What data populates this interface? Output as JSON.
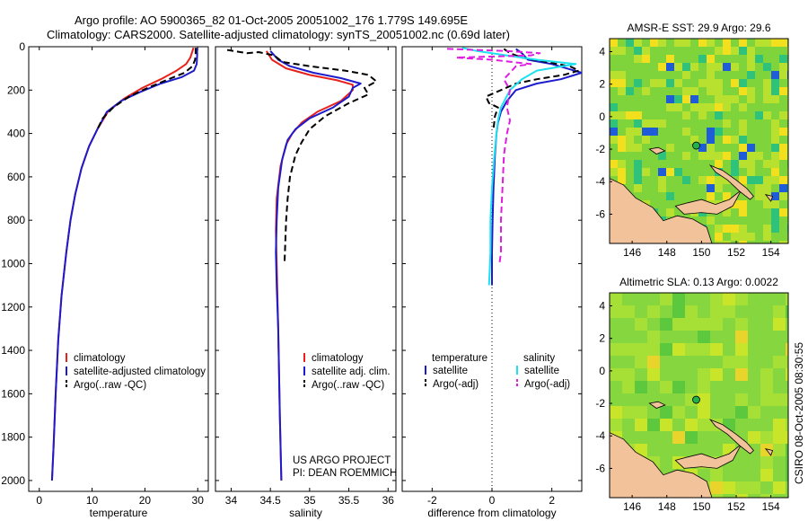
{
  "titles": {
    "line1": "Argo profile: AO 5900365_82 01-Oct-2005 20051002_176 1.779S 149.695E",
    "line2": "Climatology: CARS2000. Satellite-adjusted climatology: synTS_20051002.nc (0.69d later)"
  },
  "footer": {
    "project": "US ARGO PROJECT",
    "pi": "PI: DEAN ROEMMICH",
    "stamp": "CSIRO 08-Oct-2005 08:30:55"
  },
  "colors": {
    "climatology": "#e8211c",
    "satellite": "#1c1ccc",
    "argo": "#000000",
    "salinity_sat": "#1ee1f0",
    "salinity_argo": "#e01ee0"
  },
  "chart_data": [
    {
      "type": "line",
      "id": "temperature",
      "xlabel": "temperature",
      "xlim": [
        -2,
        32
      ],
      "ylim": [
        2050,
        0
      ],
      "xticks": [
        0,
        10,
        20,
        30
      ],
      "xtick_labels": [
        "0",
        "10",
        "20",
        "30"
      ],
      "yticks": [
        0,
        200,
        400,
        600,
        800,
        1000,
        1200,
        1400,
        1600,
        1800,
        2000
      ],
      "ytick_labels": [
        "0",
        "200",
        "400",
        "600",
        "800",
        "1000",
        "1200",
        "1400",
        "1600",
        "1800",
        "2000"
      ],
      "legend": [
        "climatology",
        "satellite-adjusted climatology",
        "Argo(..raw -QC)"
      ],
      "series": [
        {
          "name": "climatology",
          "color": "#e8211c",
          "dash": false,
          "points": [
            [
              29.2,
              5
            ],
            [
              29.0,
              20
            ],
            [
              28.6,
              50
            ],
            [
              27.8,
              80
            ],
            [
              26.0,
              110
            ],
            [
              23.0,
              150
            ],
            [
              19.5,
              190
            ],
            [
              16.0,
              240
            ],
            [
              13.0,
              300
            ],
            [
              11.0,
              380
            ],
            [
              9.4,
              460
            ],
            [
              8.0,
              560
            ],
            [
              6.8,
              680
            ],
            [
              5.9,
              800
            ],
            [
              5.1,
              950
            ],
            [
              4.2,
              1150
            ],
            [
              3.6,
              1350
            ],
            [
              3.1,
              1600
            ],
            [
              2.7,
              1850
            ],
            [
              2.4,
              2000
            ]
          ]
        },
        {
          "name": "satellite-adjusted climatology",
          "color": "#1c1ccc",
          "dash": false,
          "points": [
            [
              29.9,
              5
            ],
            [
              29.9,
              40
            ],
            [
              29.8,
              80
            ],
            [
              29.3,
              110
            ],
            [
              27.0,
              140
            ],
            [
              23.0,
              170
            ],
            [
              19.0,
              210
            ],
            [
              15.5,
              250
            ],
            [
              12.8,
              300
            ],
            [
              11.0,
              380
            ],
            [
              9.4,
              460
            ],
            [
              8.0,
              560
            ],
            [
              6.8,
              680
            ],
            [
              5.9,
              800
            ],
            [
              5.1,
              950
            ],
            [
              4.2,
              1150
            ],
            [
              3.6,
              1350
            ],
            [
              3.1,
              1600
            ],
            [
              2.7,
              1850
            ],
            [
              2.4,
              2000
            ]
          ]
        },
        {
          "name": "Argo(..raw -QC)",
          "color": "#000000",
          "dash": true,
          "points": [
            [
              29.6,
              5
            ],
            [
              29.6,
              30
            ],
            [
              29.5,
              60
            ],
            [
              29.0,
              90
            ],
            [
              27.5,
              120
            ],
            [
              24.0,
              155
            ],
            [
              20.5,
              190
            ],
            [
              17.0,
              230
            ],
            [
              14.0,
              280
            ],
            [
              12.0,
              330
            ],
            [
              11.0,
              380
            ]
          ]
        }
      ]
    },
    {
      "type": "line",
      "id": "salinity",
      "xlabel": "salinity",
      "xlim": [
        33.8,
        36.1
      ],
      "ylim": [
        2050,
        0
      ],
      "xticks": [
        34,
        34.5,
        35,
        35.5,
        36
      ],
      "xtick_labels": [
        "34",
        "34.5",
        "35",
        "35.5",
        "36"
      ],
      "legend": [
        "climatology",
        "satellite adj. clim.",
        "Argo(..raw -QC)"
      ],
      "series": [
        {
          "name": "climatology",
          "color": "#e8211c",
          "dash": false,
          "points": [
            [
              34.45,
              20
            ],
            [
              34.52,
              60
            ],
            [
              34.7,
              100
            ],
            [
              35.0,
              130
            ],
            [
              35.35,
              155
            ],
            [
              35.55,
              175
            ],
            [
              35.55,
              200
            ],
            [
              35.4,
              250
            ],
            [
              35.1,
              300
            ],
            [
              34.9,
              350
            ],
            [
              34.78,
              400
            ],
            [
              34.7,
              450
            ],
            [
              34.63,
              550
            ],
            [
              34.58,
              700
            ],
            [
              34.57,
              850
            ],
            [
              34.58,
              1000
            ],
            [
              34.6,
              1300
            ],
            [
              34.62,
              1700
            ],
            [
              34.64,
              2000
            ]
          ]
        },
        {
          "name": "satellite adj. clim.",
          "color": "#1c1ccc",
          "dash": false,
          "points": [
            [
              34.5,
              20
            ],
            [
              34.6,
              60
            ],
            [
              34.75,
              90
            ],
            [
              35.05,
              120
            ],
            [
              35.4,
              145
            ],
            [
              35.65,
              170
            ],
            [
              35.55,
              190
            ],
            [
              35.5,
              230
            ],
            [
              35.3,
              280
            ],
            [
              35.0,
              330
            ],
            [
              34.82,
              380
            ],
            [
              34.72,
              430
            ],
            [
              34.65,
              520
            ],
            [
              34.6,
              650
            ],
            [
              34.58,
              800
            ],
            [
              34.57,
              950
            ],
            [
              34.58,
              1100
            ],
            [
              34.6,
              1300
            ],
            [
              34.62,
              1700
            ],
            [
              34.64,
              2000
            ]
          ]
        },
        {
          "name": "Argo(..raw -QC)",
          "color": "#000000",
          "dash": true,
          "points": [
            [
              33.95,
              15
            ],
            [
              34.2,
              30
            ],
            [
              34.35,
              25
            ],
            [
              34.55,
              40
            ],
            [
              34.65,
              70
            ],
            [
              35.0,
              90
            ],
            [
              35.45,
              110
            ],
            [
              35.75,
              130
            ],
            [
              35.85,
              160
            ],
            [
              35.7,
              190
            ],
            [
              35.75,
              220
            ],
            [
              35.5,
              260
            ],
            [
              35.2,
              320
            ],
            [
              35.0,
              380
            ],
            [
              34.9,
              440
            ],
            [
              34.82,
              500
            ],
            [
              34.75,
              600
            ],
            [
              34.72,
              700
            ],
            [
              34.7,
              800
            ],
            [
              34.69,
              900
            ],
            [
              34.68,
              1000
            ]
          ]
        }
      ]
    },
    {
      "type": "line",
      "id": "difference",
      "xlabel": "difference from climatology",
      "xlim": [
        -3,
        3
      ],
      "ylim": [
        2050,
        0
      ],
      "xticks": [
        -2,
        0,
        2
      ],
      "xtick_labels": [
        "-2",
        "0",
        "2"
      ],
      "legend_headers": [
        "temperature",
        "salinity"
      ],
      "legend": [
        "satellite",
        "Argo(-adj)",
        "satellite",
        "Argo(-adj)"
      ],
      "series": [
        {
          "name": "temperature satellite",
          "color": "#1c1ccc",
          "dash": false,
          "points": [
            [
              0.8,
              10
            ],
            [
              1.0,
              30
            ],
            [
              1.2,
              60
            ],
            [
              2.0,
              80
            ],
            [
              3.0,
              120
            ],
            [
              2.3,
              150
            ],
            [
              1.5,
              170
            ],
            [
              0.8,
              200
            ],
            [
              0.5,
              250
            ],
            [
              0.3,
              300
            ],
            [
              0.2,
              350
            ],
            [
              0.15,
              400
            ],
            [
              0.1,
              500
            ],
            [
              0.05,
              650
            ],
            [
              0.02,
              800
            ],
            [
              0.0,
              950
            ],
            [
              0.0,
              1100
            ]
          ]
        },
        {
          "name": "temperature Argo(-adj)",
          "color": "#000000",
          "dash": true,
          "points": [
            [
              0.4,
              10
            ],
            [
              0.6,
              30
            ],
            [
              1.0,
              50
            ],
            [
              1.8,
              70
            ],
            [
              2.6,
              90
            ],
            [
              2.9,
              110
            ],
            [
              2.4,
              130
            ],
            [
              1.5,
              150
            ],
            [
              0.8,
              170
            ],
            [
              0.3,
              200
            ],
            [
              -0.2,
              230
            ],
            [
              -0.1,
              260
            ],
            [
              0.2,
              280
            ],
            [
              0.1,
              320
            ],
            [
              0.05,
              380
            ]
          ]
        },
        {
          "name": "salinity satellite",
          "color": "#1ee1f0",
          "dash": false,
          "points": [
            [
              -1.0,
              5
            ],
            [
              -0.5,
              20
            ],
            [
              0.5,
              40
            ],
            [
              1.5,
              60
            ],
            [
              2.8,
              80
            ],
            [
              1.5,
              110
            ],
            [
              1.0,
              150
            ],
            [
              0.6,
              200
            ],
            [
              0.3,
              280
            ],
            [
              0.2,
              340
            ],
            [
              0.15,
              400
            ],
            [
              0.08,
              500
            ],
            [
              0.0,
              650
            ],
            [
              -0.05,
              800
            ],
            [
              -0.05,
              950
            ],
            [
              -0.1,
              1100
            ]
          ]
        },
        {
          "name": "salinity Argo(-adj)",
          "color": "#e01ee0",
          "dash": true,
          "points": [
            [
              -1.5,
              10
            ],
            [
              0.5,
              20
            ],
            [
              1.6,
              30
            ],
            [
              1.3,
              40
            ],
            [
              -1.2,
              50
            ],
            [
              0.0,
              60
            ],
            [
              1.3,
              80
            ],
            [
              0.8,
              90
            ],
            [
              0.4,
              150
            ],
            [
              0.6,
              200
            ],
            [
              0.5,
              280
            ],
            [
              0.6,
              340
            ],
            [
              0.5,
              400
            ],
            [
              0.4,
              500
            ],
            [
              0.35,
              650
            ],
            [
              0.3,
              800
            ],
            [
              0.3,
              950
            ],
            [
              0.25,
              1000
            ]
          ]
        }
      ]
    },
    {
      "type": "heatmap",
      "id": "sst-map",
      "title": "AMSR-E SST: 29.9 Argo: 29.6",
      "xlim": [
        144.7,
        155
      ],
      "ylim": [
        -7.8,
        4.8
      ],
      "xticks": [
        146,
        148,
        150,
        152,
        154
      ],
      "xtick_labels": [
        "146",
        "148",
        "150",
        "152",
        "154"
      ],
      "yticks": [
        4,
        2,
        0,
        -2,
        -4,
        -6
      ],
      "ytick_labels": [
        "4",
        "2",
        "0",
        "-2",
        "-4",
        "-6"
      ],
      "profile_location": [
        149.695,
        -1.779
      ]
    },
    {
      "type": "heatmap",
      "id": "sla-map",
      "title": "Altimetric SLA: 0.13 Argo: 0.0022",
      "xlim": [
        144.7,
        155
      ],
      "ylim": [
        -7.8,
        4.8
      ],
      "xticks": [
        146,
        148,
        150,
        152,
        154
      ],
      "xtick_labels": [
        "146",
        "148",
        "150",
        "152",
        "154"
      ],
      "yticks": [
        4,
        2,
        0,
        -2,
        -4,
        -6
      ],
      "ytick_labels": [
        "4",
        "2",
        "0",
        "-2",
        "-4",
        "-6"
      ],
      "profile_location": [
        149.695,
        -1.779
      ]
    }
  ]
}
